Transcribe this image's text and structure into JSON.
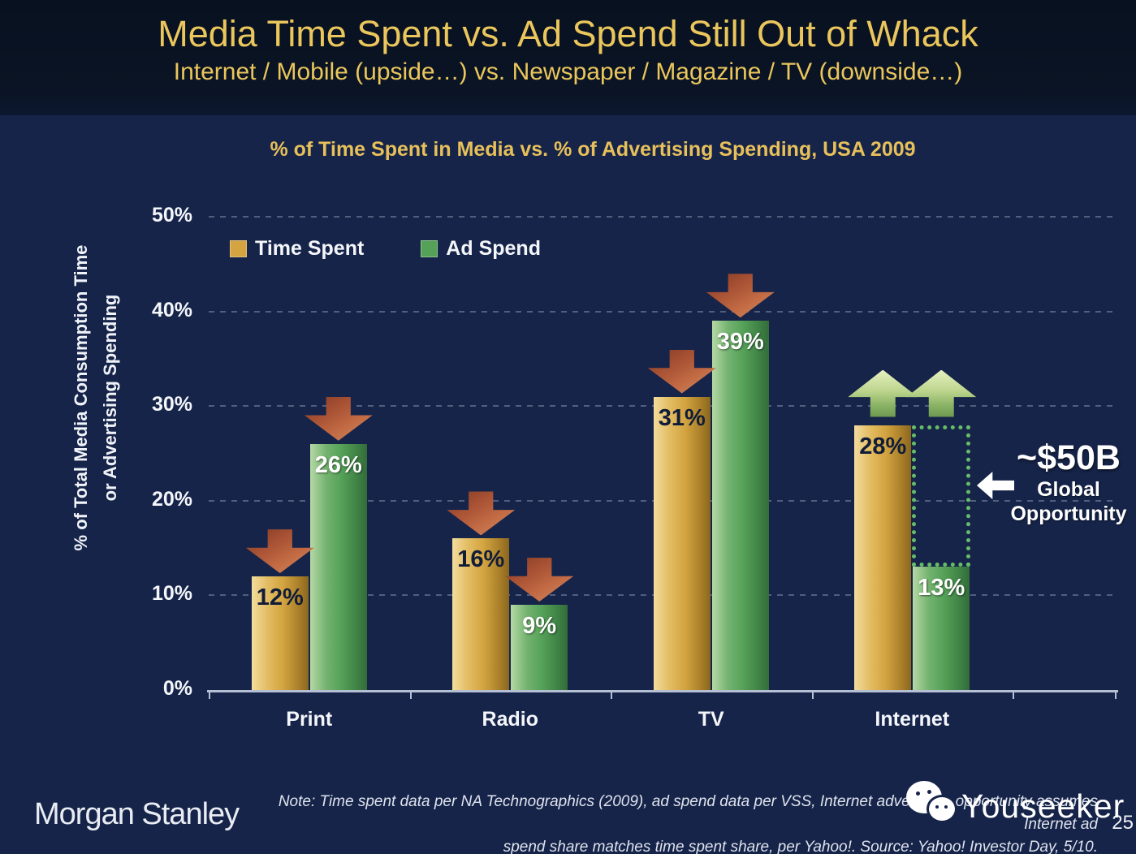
{
  "slide": {
    "title": "Media Time Spent vs. Ad Spend Still Out of Whack",
    "subtitle": "Internet / Mobile (upside…) vs. Newspaper / Magazine / TV (downside…)",
    "page_number": "25"
  },
  "chart": {
    "title": "% of Time Spent in Media vs. % of Advertising Spending, USA 2009",
    "y_axis_title_line1": "% of Total Media Consumption Time",
    "y_axis_title_line2": "or Advertising Spending",
    "legend": [
      {
        "label": "Time Spent",
        "color": "#d3a440"
      },
      {
        "label": "Ad Spend",
        "color": "#55a158"
      }
    ]
  },
  "chart_data": {
    "type": "bar",
    "title": "% of Time Spent in Media vs. % of Advertising Spending, USA 2009",
    "categories": [
      "Print",
      "Radio",
      "TV",
      "Internet"
    ],
    "series": [
      {
        "name": "Time Spent",
        "values": [
          12,
          16,
          31,
          28
        ],
        "color": "#d3a440"
      },
      {
        "name": "Ad Spend",
        "values": [
          26,
          9,
          39,
          13
        ],
        "color": "#55a158"
      }
    ],
    "value_suffix": "%",
    "ylabel": "% of Total Media Consumption Time or Advertising Spending",
    "ylim": [
      0,
      50
    ],
    "y_ticks": [
      "0%",
      "10%",
      "20%",
      "30%",
      "40%",
      "50%"
    ],
    "grid": "dashed horizontal",
    "legend_position": "top-left inside plot",
    "trend_arrows": [
      "down",
      "down",
      "down",
      "up"
    ],
    "gap_box": {
      "category_index": 3,
      "meaning": "difference between 28% time spent and 13% ad spend"
    },
    "annotation": {
      "value": "~$50B",
      "line1": "Global",
      "line2": "Opportunity"
    }
  },
  "footer": {
    "logo": "Morgan Stanley",
    "note_line1": "Note: Time spent data per NA Technographics (2009), ad spend data per VSS, Internet advertising opportunity assumes Internet ad",
    "note_line2": "spend share matches time spent share, per Yahoo!. Source: Yahoo! Investor Day, 5/10.",
    "watermark": "Youseeker"
  },
  "colors": {
    "slide_background": "#16244a",
    "title_band_background": "#0a1424",
    "title_gold": "#eac65c",
    "bar_gold": "#d3a440",
    "bar_green": "#55a158",
    "arrow_red": "#bb5c3a",
    "arrow_green": "#a9c97c",
    "gap_box_green": "#66bd68",
    "axis_light": "#b6c0d4"
  }
}
